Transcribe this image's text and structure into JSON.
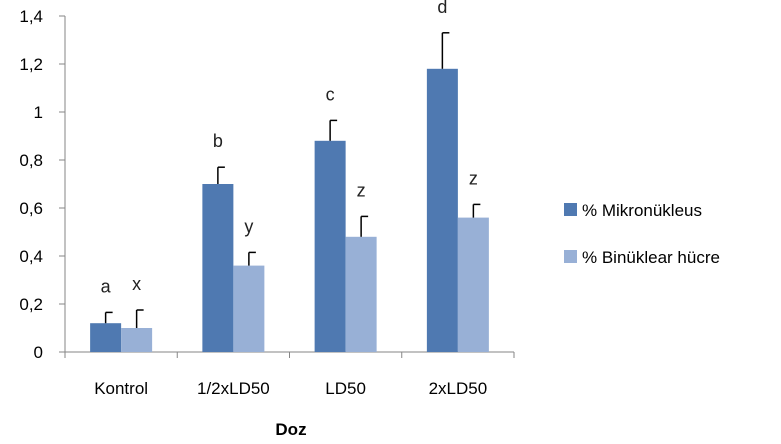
{
  "chart_data": {
    "type": "bar",
    "categories": [
      "Kontrol",
      "1/2xLD50",
      "LD50",
      "2xLD50"
    ],
    "series": [
      {
        "name": "% Mikronükleus",
        "color": "#4F79B1",
        "values": [
          0.12,
          0.7,
          0.88,
          1.18
        ],
        "errors": [
          0.045,
          0.07,
          0.085,
          0.15
        ],
        "letters": [
          "a",
          "b",
          "c",
          "d"
        ]
      },
      {
        "name": "% Binüklear hücre",
        "color": "#98B0D6",
        "values": [
          0.1,
          0.36,
          0.48,
          0.56
        ],
        "errors": [
          0.075,
          0.055,
          0.085,
          0.055
        ],
        "letters": [
          "x",
          "y",
          "z",
          "z"
        ]
      }
    ],
    "xlabel": "Doz",
    "ylabel": "",
    "ylim": [
      0,
      1.4
    ],
    "yticks": [
      "0",
      "0,2",
      "0,4",
      "0,6",
      "0,8",
      "1",
      "1,2",
      "1,4"
    ],
    "grid": false,
    "legend_position": "right"
  }
}
